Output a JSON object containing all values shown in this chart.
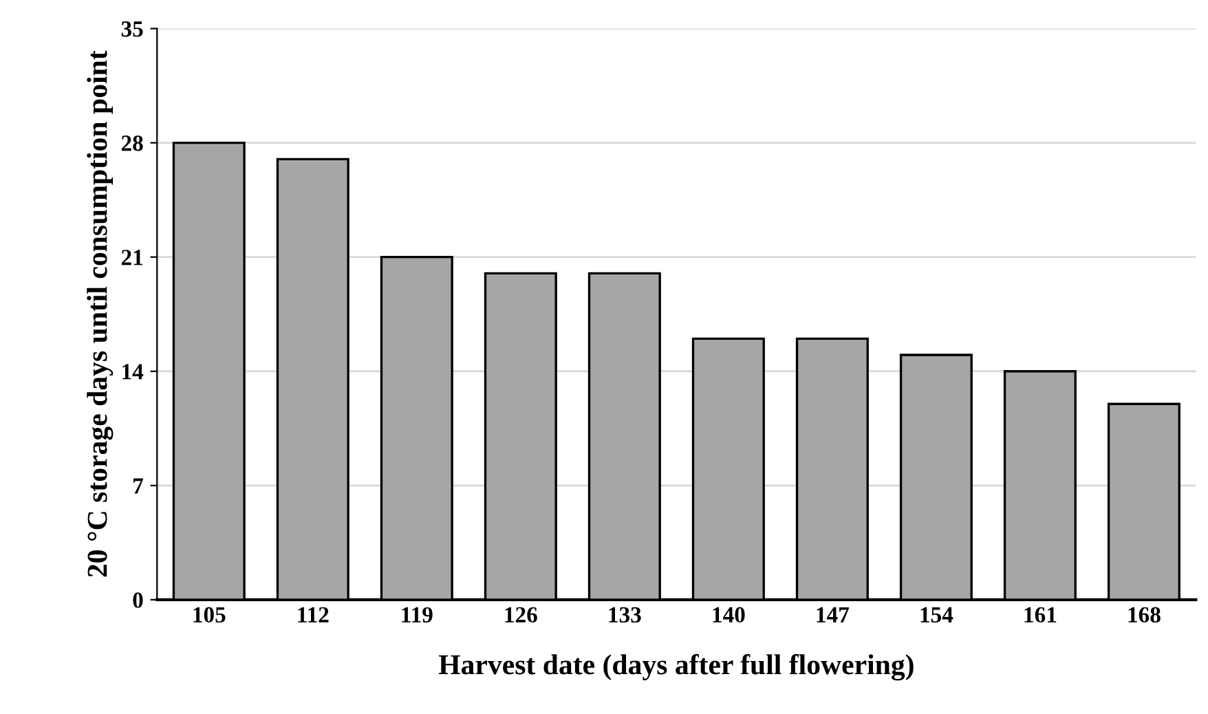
{
  "chart_data": {
    "type": "bar",
    "xlabel": "Harvest date (days after full flowering)",
    "ylabel": "20 °C storage days until consumption point",
    "categories": [
      "105",
      "112",
      "119",
      "126",
      "133",
      "140",
      "147",
      "154",
      "161",
      "168"
    ],
    "values": [
      28,
      27,
      21,
      20,
      20,
      16,
      16,
      15,
      14,
      12
    ],
    "color": "#a6a6a6",
    "ylim": [
      0,
      35
    ],
    "yticks": [
      0,
      7,
      14,
      21,
      28,
      35
    ],
    "grid": "y"
  }
}
